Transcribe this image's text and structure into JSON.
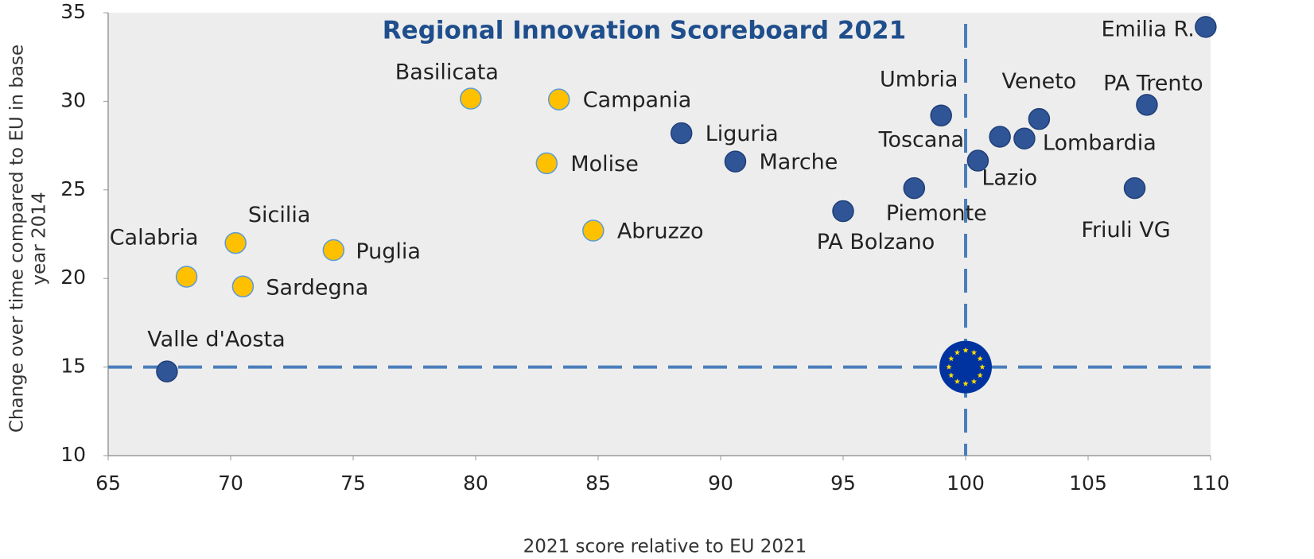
{
  "chart_data": {
    "type": "scatter",
    "title": "Regional Innovation Scoreboard 2021",
    "xlabel": "2021 score relative to EU 2021",
    "ylabel": [
      "Change over time compared to EU in base",
      "year 2014"
    ],
    "xlim": [
      65,
      110
    ],
    "xticks": [
      65,
      70,
      75,
      80,
      85,
      90,
      95,
      100,
      105,
      110
    ],
    "ylim": [
      10,
      35
    ],
    "yticks": [
      10,
      15,
      20,
      25,
      30,
      35
    ],
    "reference": {
      "x": 100,
      "y": 15
    },
    "points": [
      {
        "label": "Emilia R.",
        "x": 109.8,
        "y": 34.2,
        "color": "#2f5597"
      },
      {
        "label": "Basilicata",
        "x": 79.8,
        "y": 30.15,
        "color": "#ffc000"
      },
      {
        "label": "Campania",
        "x": 83.4,
        "y": 30.1,
        "color": "#ffc000"
      },
      {
        "label": "Liguria",
        "x": 88.4,
        "y": 28.2,
        "color": "#2f5597"
      },
      {
        "label": "Molise",
        "x": 82.9,
        "y": 26.5,
        "color": "#ffc000"
      },
      {
        "label": "Marche",
        "x": 90.6,
        "y": 26.6,
        "color": "#2f5597"
      },
      {
        "label": "Abruzzo",
        "x": 84.8,
        "y": 22.7,
        "color": "#ffc000"
      },
      {
        "label": "Umbria",
        "x": 99.0,
        "y": 29.2,
        "color": "#2f5597"
      },
      {
        "label": "Veneto",
        "x": 103.0,
        "y": 29.0,
        "color": "#2f5597"
      },
      {
        "label": "PA Trento",
        "x": 107.4,
        "y": 29.8,
        "color": "#2f5597"
      },
      {
        "label": "Toscana",
        "x": 101.4,
        "y": 28.0,
        "color": "#2f5597"
      },
      {
        "label": "Lombardia",
        "x": 102.4,
        "y": 27.9,
        "color": "#2f5597"
      },
      {
        "label": "Lazio",
        "x": 100.5,
        "y": 26.65,
        "color": "#2f5597"
      },
      {
        "label": "Piemonte",
        "x": 97.9,
        "y": 25.1,
        "color": "#2f5597"
      },
      {
        "label": "Friuli VG",
        "x": 106.9,
        "y": 25.1,
        "color": "#2f5597"
      },
      {
        "label": "PA Bolzano",
        "x": 95.0,
        "y": 23.8,
        "color": "#2f5597"
      },
      {
        "label": "Sicilia",
        "x": 70.2,
        "y": 22.0,
        "color": "#ffc000"
      },
      {
        "label": "Puglia",
        "x": 74.2,
        "y": 21.6,
        "color": "#ffc000"
      },
      {
        "label": "Calabria",
        "x": 68.2,
        "y": 20.1,
        "color": "#ffc000"
      },
      {
        "label": "Sardegna",
        "x": 70.5,
        "y": 19.55,
        "color": "#ffc000"
      },
      {
        "label": "Valle d'Aosta",
        "x": 67.4,
        "y": 14.75,
        "color": "#2f5597"
      }
    ]
  }
}
